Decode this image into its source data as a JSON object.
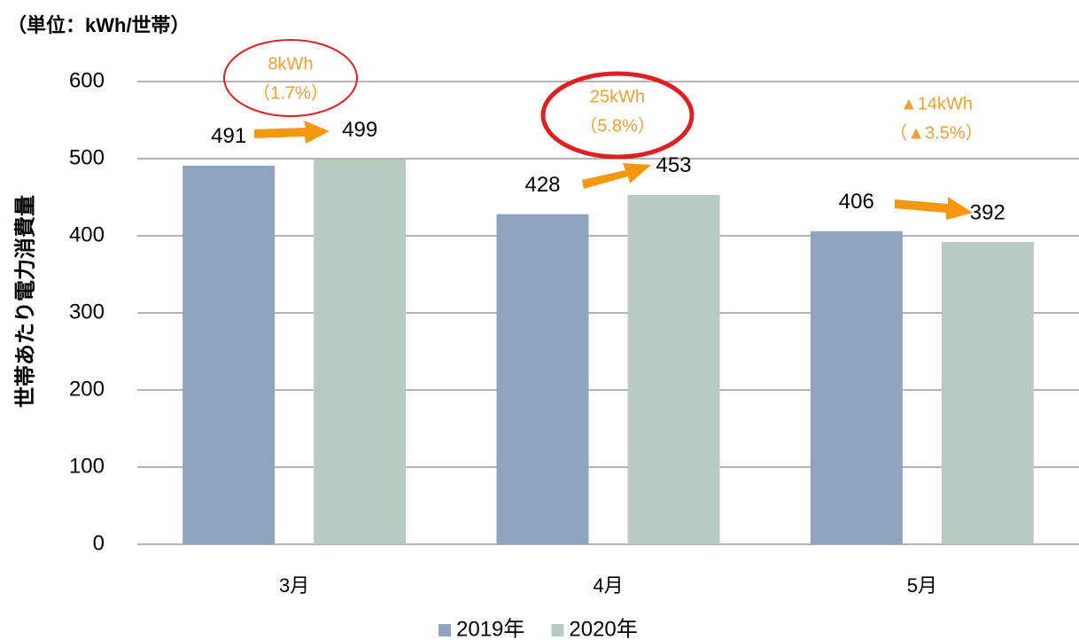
{
  "chart_data": {
    "type": "bar",
    "subtitle": "（単位：kWh/世帯）",
    "y_label": "世帯あたり電力消費量",
    "categories": [
      "3月",
      "4月",
      "5月"
    ],
    "series": [
      {
        "name": "2019年",
        "color": "#8fa5bf",
        "values": [
          491,
          428,
          406
        ]
      },
      {
        "name": "2020年",
        "color": "#b8cbc0",
        "values": [
          499,
          453,
          392
        ]
      }
    ],
    "ylim": [
      0,
      600
    ],
    "yticks": [
      0,
      100,
      200,
      300,
      400,
      500,
      600
    ],
    "grid": true,
    "legend": "bottom",
    "annotations": [
      "8kWh",
      "（1.7%）",
      "25kWh",
      "（5.8%）",
      "▲14kWh",
      "（▲3.5%）"
    ]
  }
}
